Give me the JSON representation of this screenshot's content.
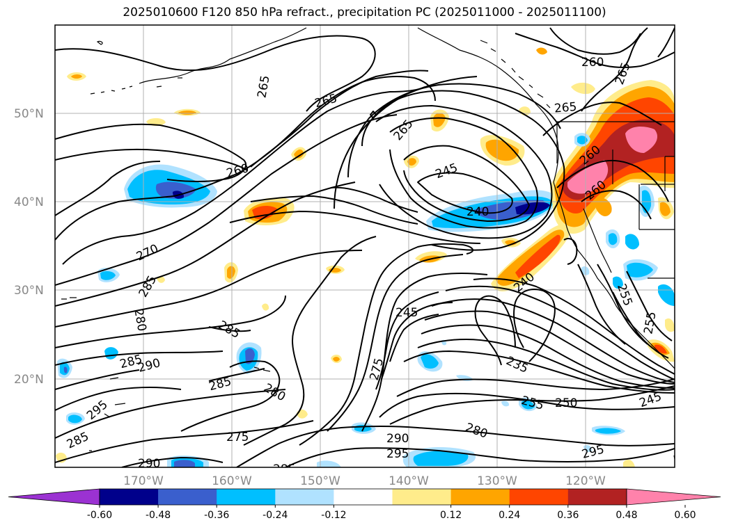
{
  "title": "2025010600 F120 850 hPa refract., precipitation PC (2025011000 - 2025011100)",
  "lat_labels": [
    "50°N",
    "40°N",
    "30°N",
    "20°N"
  ],
  "lon_labels": [
    "170°W",
    "160°W",
    "150°W",
    "140°W",
    "130°W",
    "120°W"
  ],
  "contour_labels": [
    "265",
    "265",
    "265",
    "260",
    "260",
    "265",
    "245",
    "240",
    "270",
    "285",
    "280",
    "285",
    "285",
    "290",
    "285",
    "295",
    "285",
    "275",
    "280",
    "275",
    "290",
    "295",
    "290",
    "285",
    "245",
    "240",
    "235",
    "255",
    "250",
    "280",
    "295",
    "245",
    "265",
    "260",
    "260",
    "255",
    "255"
  ],
  "colorbar": {
    "ticks": [
      "-0.60",
      "-0.48",
      "-0.36",
      "-0.24",
      "-0.12",
      "0.12",
      "0.24",
      "0.36",
      "0.48",
      "0.60"
    ],
    "colors": [
      "#9b32d2",
      "#00008b",
      "#3a5fcd",
      "#00bfff",
      "#b0e2ff",
      "#ffffff",
      "#ffec8b",
      "#ffa500",
      "#ff4500",
      "#b22222",
      "#ff82ab"
    ]
  }
}
